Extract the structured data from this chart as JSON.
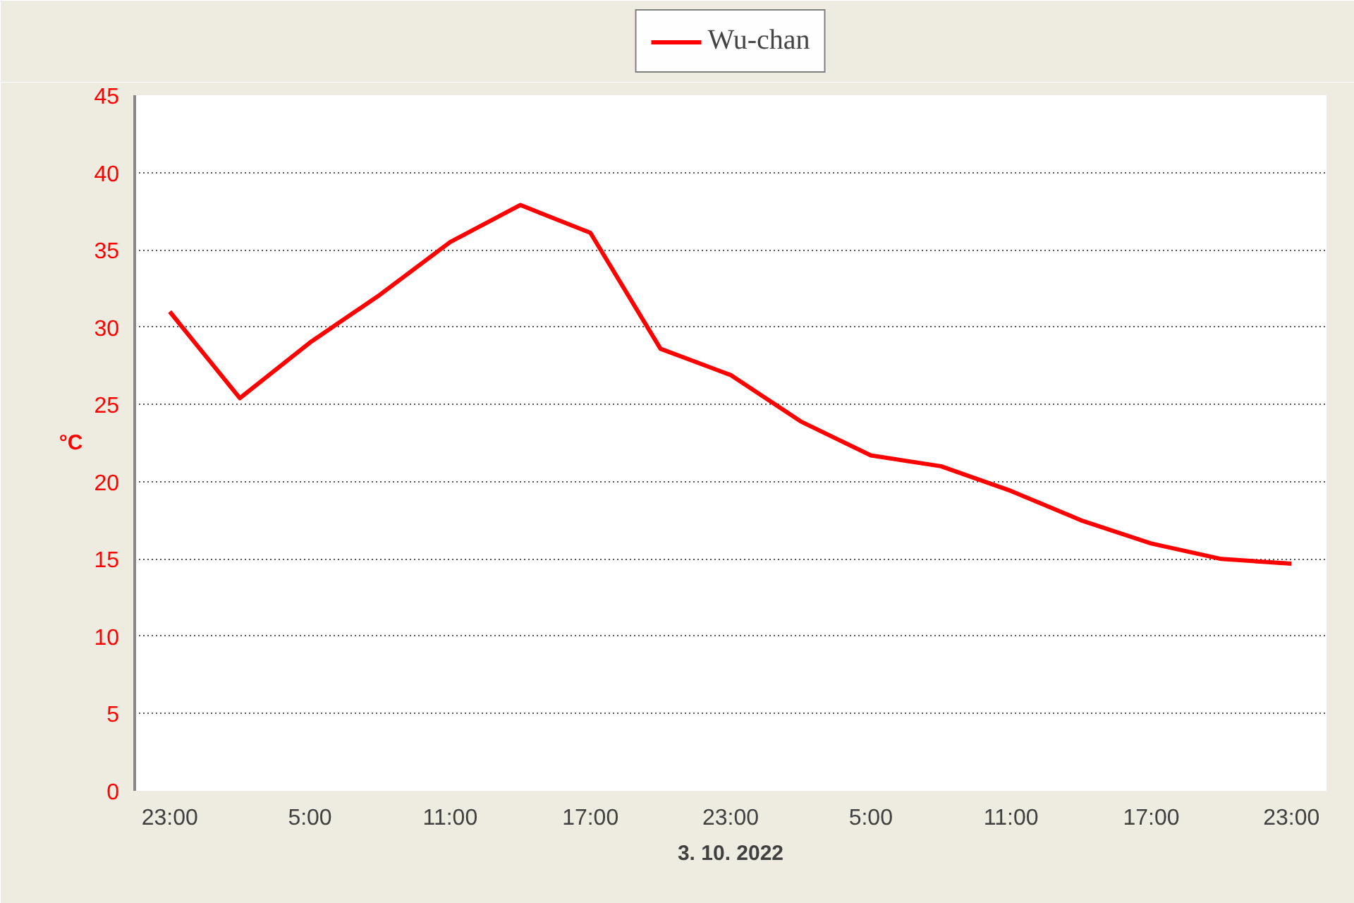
{
  "chart_data": {
    "type": "line",
    "xlabel": "3. 10. 2022",
    "ylabel": "°C",
    "categories": [
      "23:00",
      null,
      "5:00",
      null,
      "11:00",
      null,
      "17:00",
      null,
      "23:00",
      null,
      "5:00",
      null,
      "11:00",
      null,
      "17:00",
      null,
      "23:00"
    ],
    "series": [
      {
        "name": "Wu-chan",
        "color": "#ff0000",
        "values": [
          31.0,
          25.4,
          29.0,
          32.1,
          35.5,
          37.9,
          36.1,
          28.6,
          26.9,
          23.9,
          21.7,
          21.0,
          19.4,
          17.5,
          16.0,
          15.0,
          14.7
        ]
      }
    ],
    "ylim": [
      0,
      45
    ],
    "yticks": [
      0,
      5,
      10,
      15,
      20,
      25,
      30,
      35,
      40,
      45
    ],
    "grid": "y",
    "legend": "top",
    "line_style": "solid",
    "marker": "none"
  }
}
